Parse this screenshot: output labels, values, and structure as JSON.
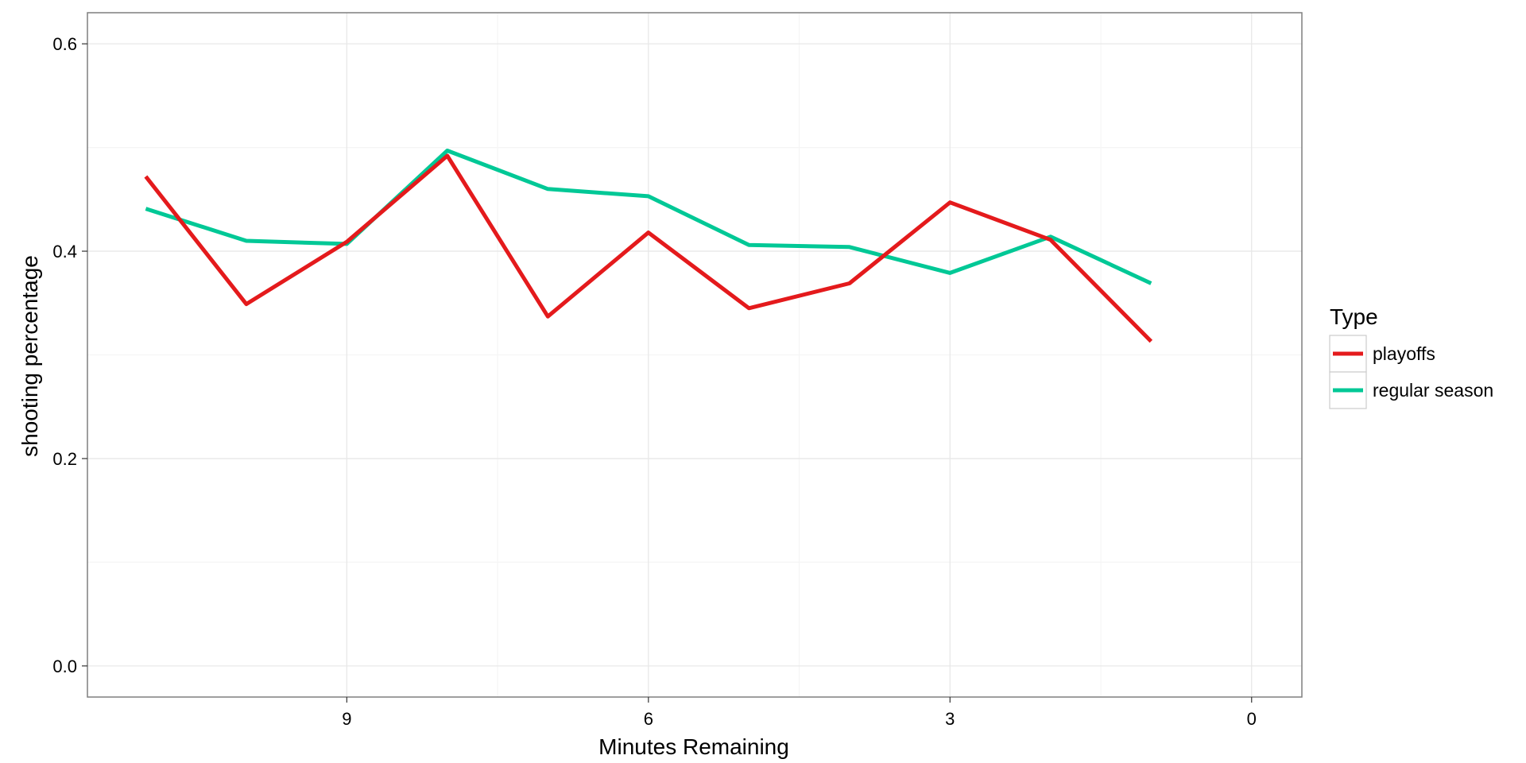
{
  "chart_data": {
    "type": "line",
    "title": "",
    "xlabel": "Minutes Remaining",
    "ylabel": "shooting percentage",
    "x_reversed": true,
    "xlim": [
      -0.5,
      11.58
    ],
    "ylim": [
      -0.03,
      0.63
    ],
    "x_ticks": [
      9,
      6,
      3,
      0
    ],
    "x_tick_labels": [
      "9",
      "6",
      "3",
      "0"
    ],
    "y_ticks": [
      0.0,
      0.2,
      0.4,
      0.6
    ],
    "y_tick_labels": [
      "0.0",
      "0.2",
      "0.4",
      "0.6"
    ],
    "grid": true,
    "legend": {
      "title": "Type",
      "placement": "right"
    },
    "x": [
      11,
      10,
      9,
      8,
      7,
      6,
      5,
      4,
      3,
      2,
      1
    ],
    "series": [
      {
        "name": "playoffs",
        "color": "#e41a1c",
        "values": [
          0.472,
          0.349,
          0.409,
          0.492,
          0.337,
          0.418,
          0.345,
          0.369,
          0.447,
          0.411,
          0.313
        ]
      },
      {
        "name": "regular season",
        "color": "#00c896",
        "values": [
          0.441,
          0.41,
          0.407,
          0.497,
          0.46,
          0.453,
          0.406,
          0.404,
          0.379,
          0.414,
          0.369
        ]
      }
    ]
  }
}
